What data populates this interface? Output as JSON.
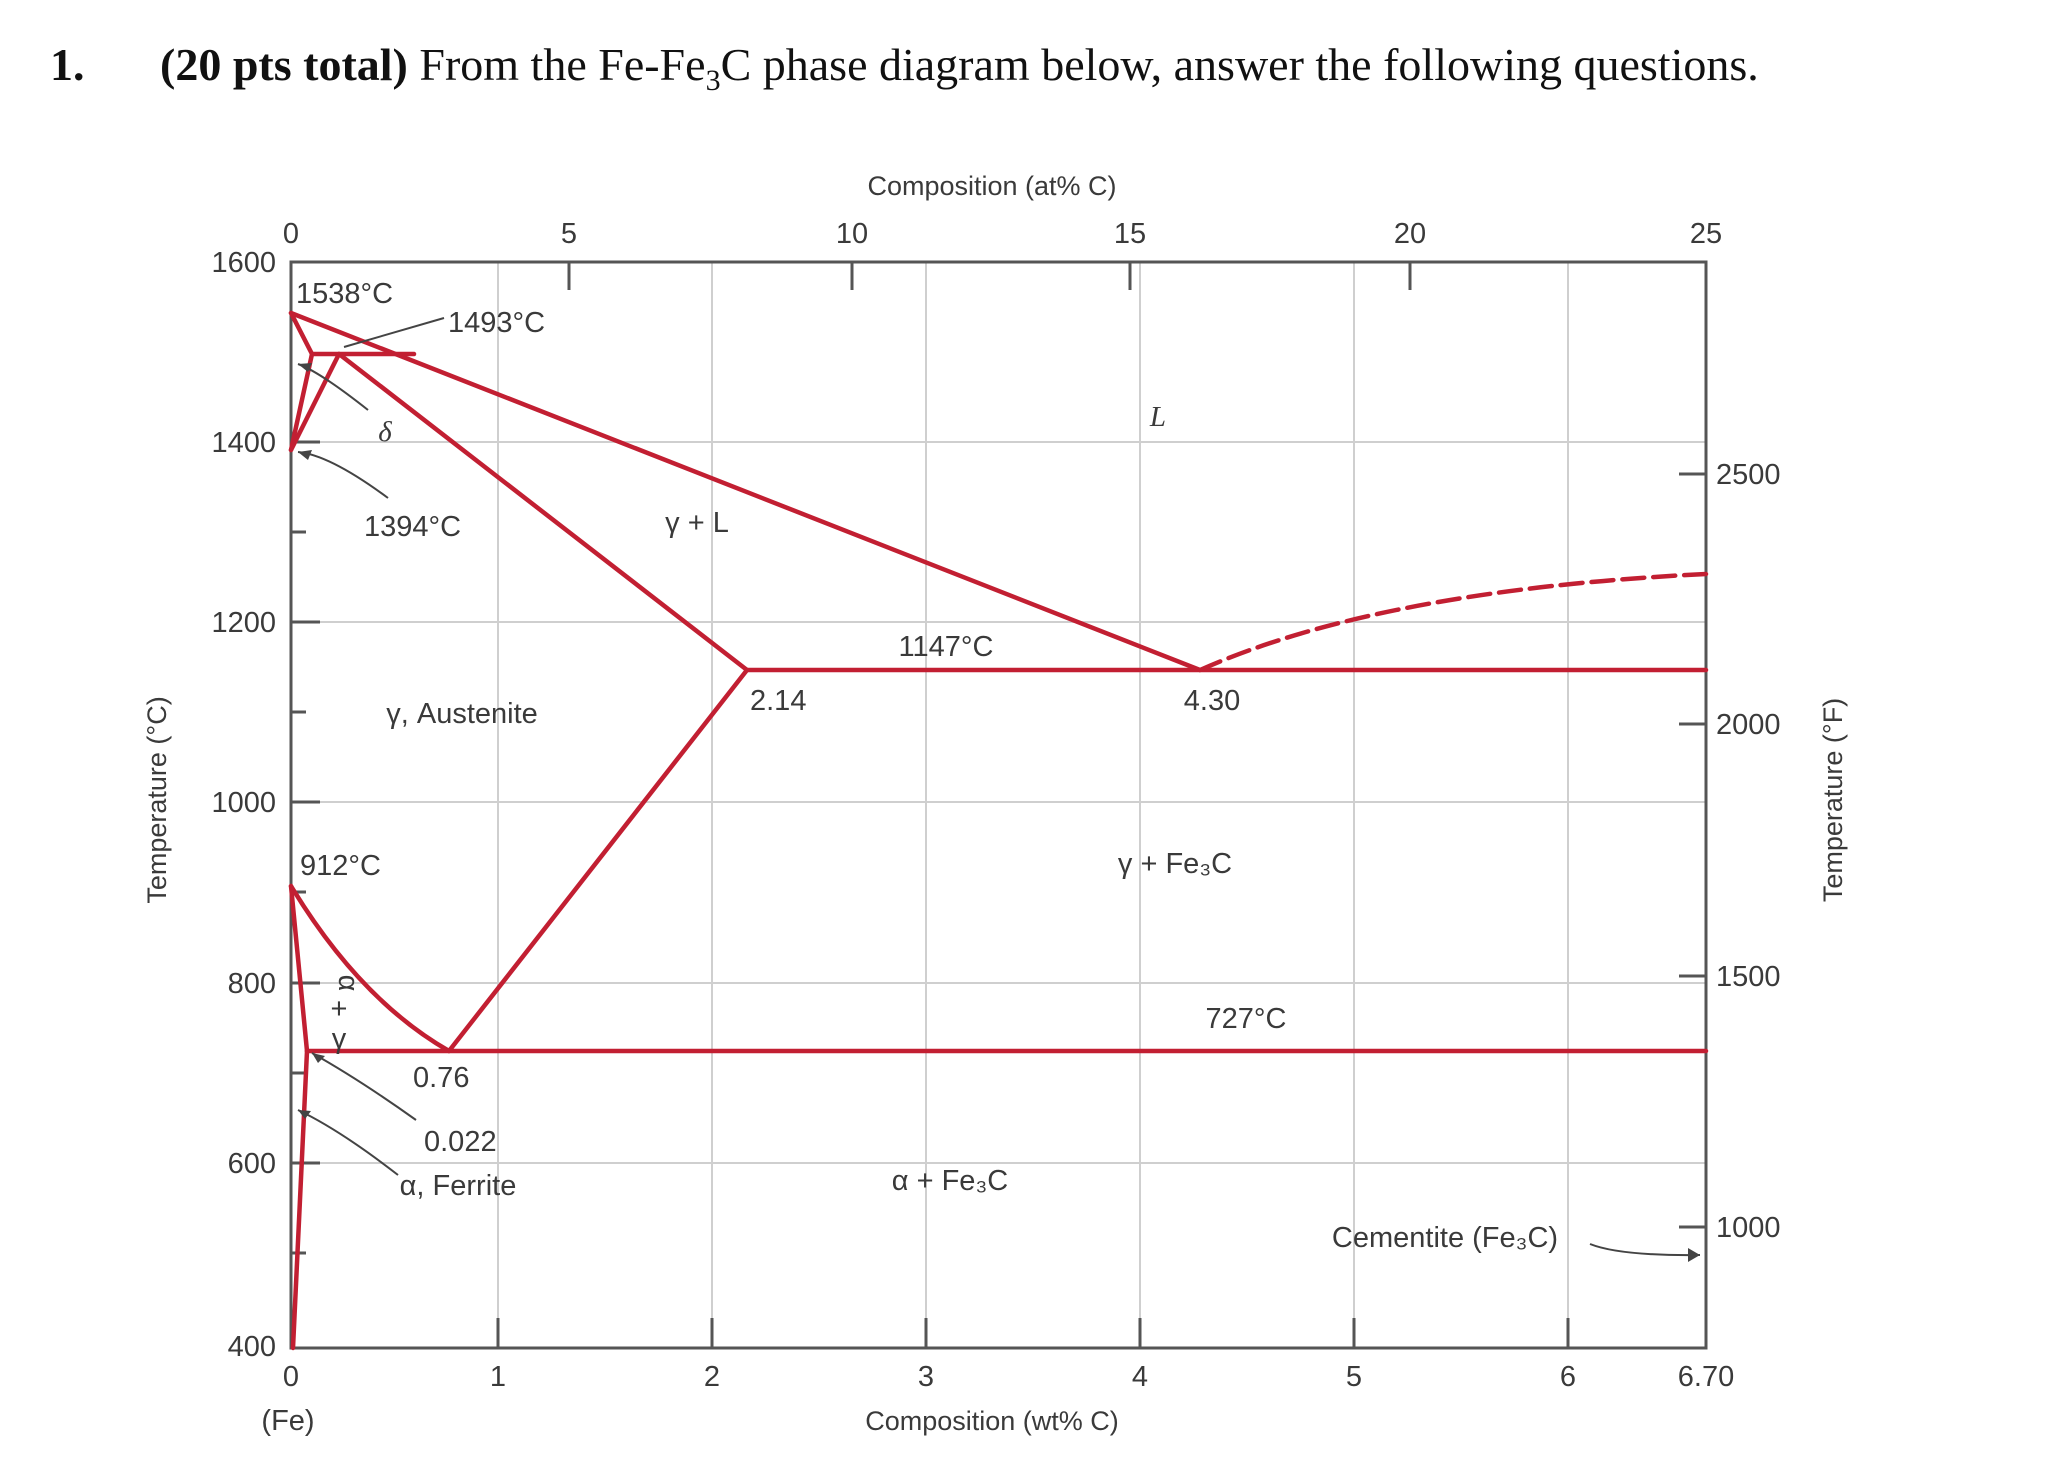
{
  "question": {
    "number": "1.",
    "points": "(20 pts total)",
    "text_a": " From the Fe-Fe",
    "text_sub": "3",
    "text_b": "C phase diagram below, answer the following questions."
  },
  "diagram": {
    "top_axis_title": "Composition (at% C)",
    "top_ticks": [
      "0",
      "5",
      "10",
      "15",
      "20",
      "25"
    ],
    "bottom_axis_title": "Composition (wt% C)",
    "bottom_ticks": [
      "0",
      "1",
      "2",
      "3",
      "4",
      "5",
      "6",
      "6.70"
    ],
    "bottom_left_label": "(Fe)",
    "left_axis_title": "Temperature (°C)",
    "left_ticks": [
      "1600",
      "1400",
      "1200",
      "1000",
      "800",
      "600",
      "400"
    ],
    "right_axis_title": "Temperature (°F)",
    "right_ticks": [
      "2500",
      "2000",
      "1500",
      "1000"
    ],
    "phase_labels": {
      "liquid": "L",
      "gamma_liquid": "γ + L",
      "austenite": "γ, Austenite",
      "gamma_fe3c": "γ + Fe₃C",
      "alpha_fe3c": "α + Fe₃C",
      "ferrite": "α, Ferrite",
      "delta": "δ",
      "alpha_gamma_a": "α",
      "alpha_gamma_plus": "+",
      "alpha_gamma_g": "γ",
      "cementite": "Cementite (Fe₃C)"
    },
    "point_labels": {
      "t1538": "1538°C",
      "t1493": "1493°C",
      "t1394": "1394°C",
      "t1147": "1147°C",
      "c214": "2.14",
      "c430": "4.30",
      "t912": "912°C",
      "t727": "727°C",
      "c076": "0.76",
      "c0022": "0.022"
    },
    "colors": {
      "phase_line": "#c21f32",
      "grid": "#cfcfcf",
      "frame": "#555555"
    }
  }
}
